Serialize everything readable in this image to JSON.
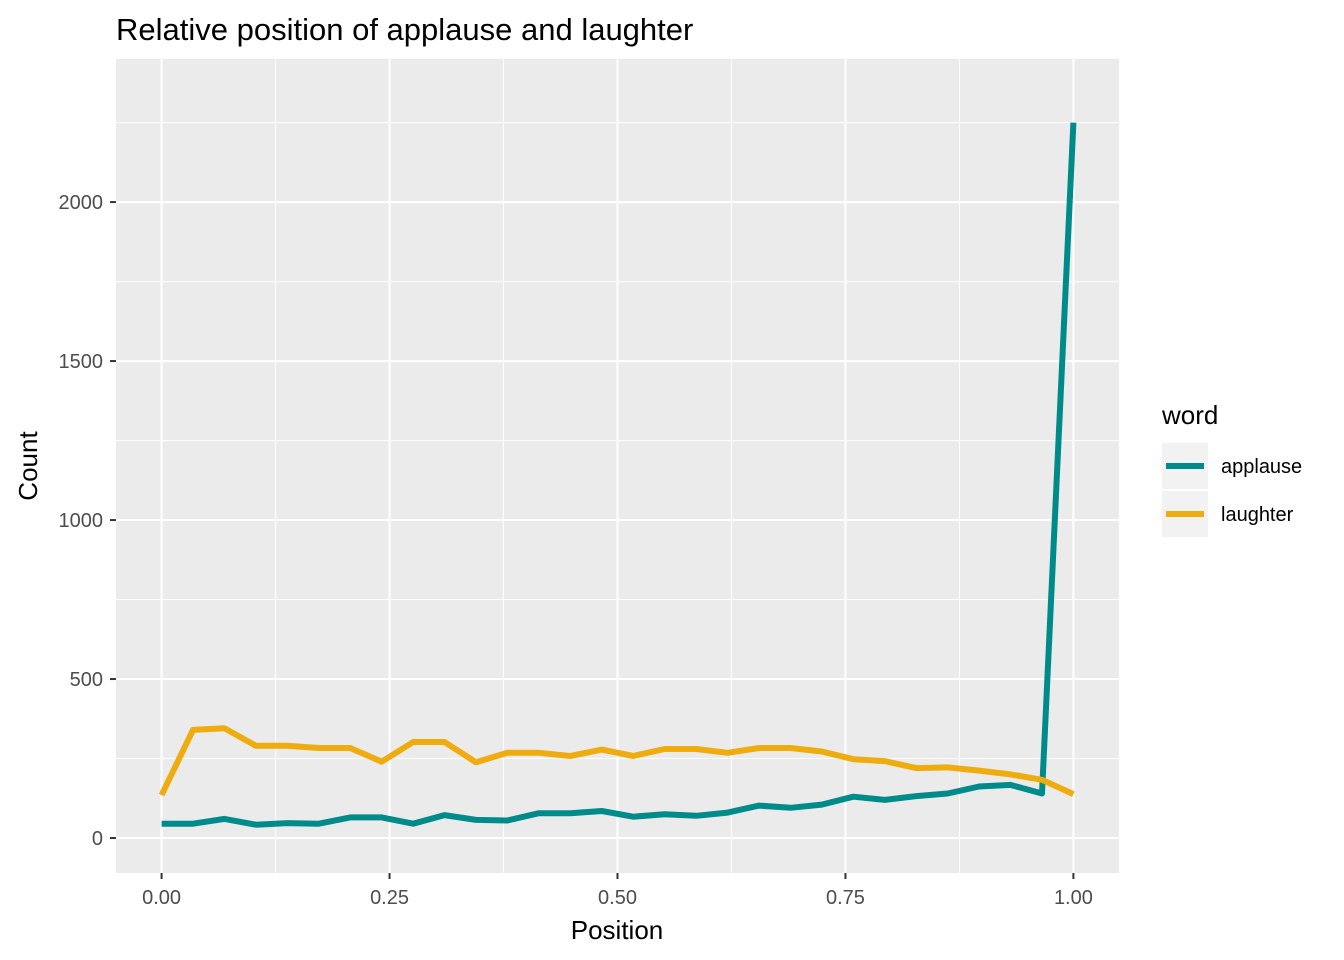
{
  "chart_data": {
    "type": "line",
    "title": "Relative position of applause and laughter",
    "xlabel": "Position",
    "ylabel": "Count",
    "xlim": [
      -0.05,
      1.05
    ],
    "ylim": [
      -110,
      2450
    ],
    "x_ticks": [
      0.0,
      0.25,
      0.5,
      0.75,
      1.0
    ],
    "x_tick_labels": [
      "0.00",
      "0.25",
      "0.50",
      "0.75",
      "1.00"
    ],
    "y_ticks": [
      0,
      500,
      1000,
      1500,
      2000
    ],
    "y_tick_labels": [
      "0",
      "500",
      "1000",
      "1500",
      "2000"
    ],
    "x_minor_ticks": [
      0.125,
      0.375,
      0.625,
      0.875
    ],
    "y_minor_ticks": [
      250,
      750,
      1250,
      1750,
      2250
    ],
    "grid": true,
    "legend": {
      "title": "word",
      "position": "right"
    },
    "x": [
      0.0,
      0.0345,
      0.069,
      0.1034,
      0.1379,
      0.1724,
      0.2069,
      0.2414,
      0.2759,
      0.3103,
      0.3448,
      0.3793,
      0.4138,
      0.4483,
      0.4828,
      0.5172,
      0.5517,
      0.5862,
      0.6207,
      0.6552,
      0.6897,
      0.7241,
      0.7586,
      0.7931,
      0.8276,
      0.8621,
      0.8966,
      0.931,
      0.9655,
      1.0
    ],
    "series": [
      {
        "name": "applause",
        "color": "#008b8b",
        "values": [
          45,
          45,
          60,
          42,
          47,
          45,
          65,
          65,
          45,
          72,
          57,
          55,
          78,
          78,
          85,
          67,
          75,
          70,
          80,
          102,
          95,
          105,
          130,
          120,
          132,
          140,
          162,
          167,
          140,
          2250
        ]
      },
      {
        "name": "laughter",
        "color": "#eeac0f",
        "values": [
          135,
          340,
          345,
          290,
          290,
          283,
          283,
          240,
          302,
          302,
          238,
          268,
          268,
          258,
          278,
          258,
          280,
          280,
          268,
          283,
          283,
          272,
          248,
          242,
          220,
          222,
          212,
          200,
          183,
          138
        ]
      }
    ]
  }
}
